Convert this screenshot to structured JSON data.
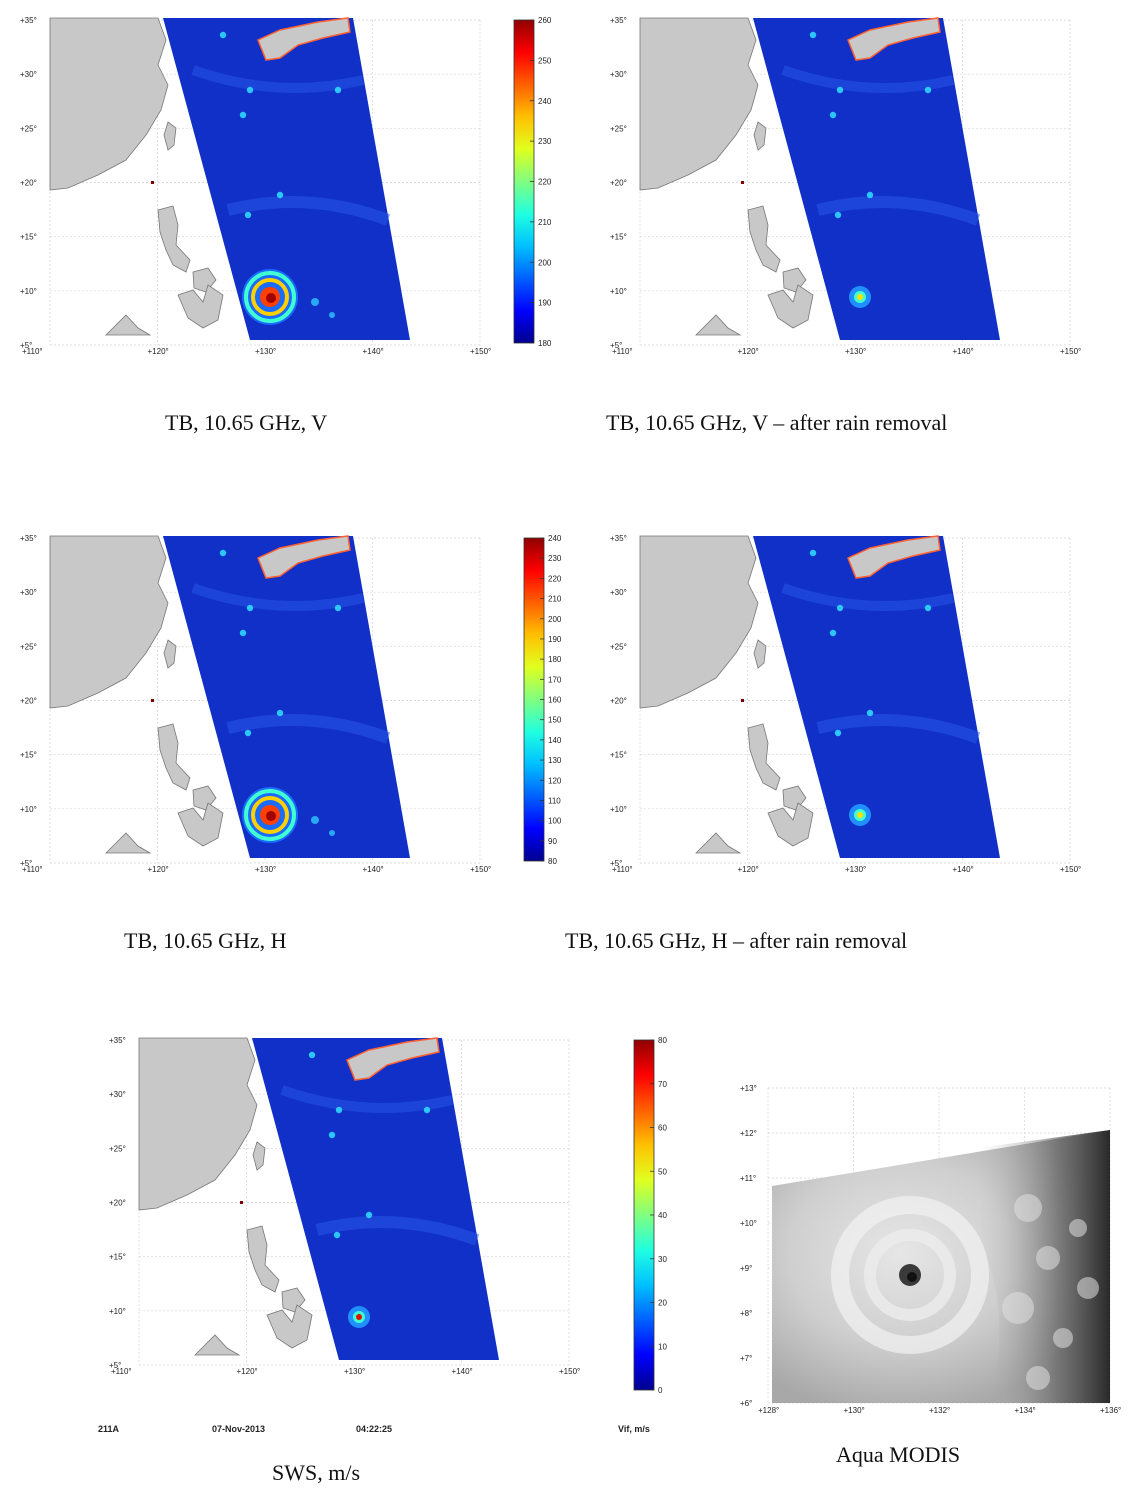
{
  "panels": [
    {
      "caption": "TB, 10.65 GHz, V",
      "storm_ring": true
    },
    {
      "caption": "TB, 10.65 GHz, V – after rain removal",
      "storm_ring": false
    },
    {
      "caption": "TB, 10.65 GHz, H",
      "storm_ring": true
    },
    {
      "caption": "TB, 10.65 GHz, H – after rain removal",
      "storm_ring": false
    },
    {
      "caption": "SWS, m/s",
      "storm_ring": false
    }
  ],
  "map_axes": {
    "lat_labels": [
      "+35°",
      "+30°",
      "+25°",
      "+20°",
      "+15°",
      "+10°",
      "+5°"
    ],
    "lon_labels": [
      "+110°",
      "+120°",
      "+130°",
      "+140°",
      "+150°"
    ]
  },
  "colorbars": [
    {
      "name": "tb-v-scale",
      "labels": [
        "260",
        "250",
        "240",
        "230",
        "220",
        "210",
        "200",
        "190",
        "180"
      ]
    },
    {
      "name": "tb-h-scale",
      "labels": [
        "240",
        "230",
        "220",
        "210",
        "200",
        "190",
        "180",
        "170",
        "160",
        "150",
        "140",
        "130",
        "120",
        "110",
        "100",
        "90",
        "80"
      ]
    },
    {
      "name": "sws-scale",
      "labels": [
        "80",
        "70",
        "60",
        "50",
        "40",
        "30",
        "20",
        "10",
        "0"
      ]
    }
  ],
  "footer": {
    "left": "211A",
    "date": "07-Nov-2013",
    "time": "04:22:25",
    "units": "Vif, m/s"
  },
  "modis": {
    "caption": "Aqua MODIS",
    "lat_labels": [
      "+13°",
      "+12°",
      "+11°",
      "+10°",
      "+9°",
      "+8°",
      "+7°",
      "+6°"
    ],
    "lon_labels": [
      "+128°",
      "+130°",
      "+132°",
      "+134°",
      "+136°"
    ]
  },
  "colors": {
    "land": "#c8c8c8",
    "ocean": "#1030c8",
    "grid": "#d4d4d4"
  }
}
